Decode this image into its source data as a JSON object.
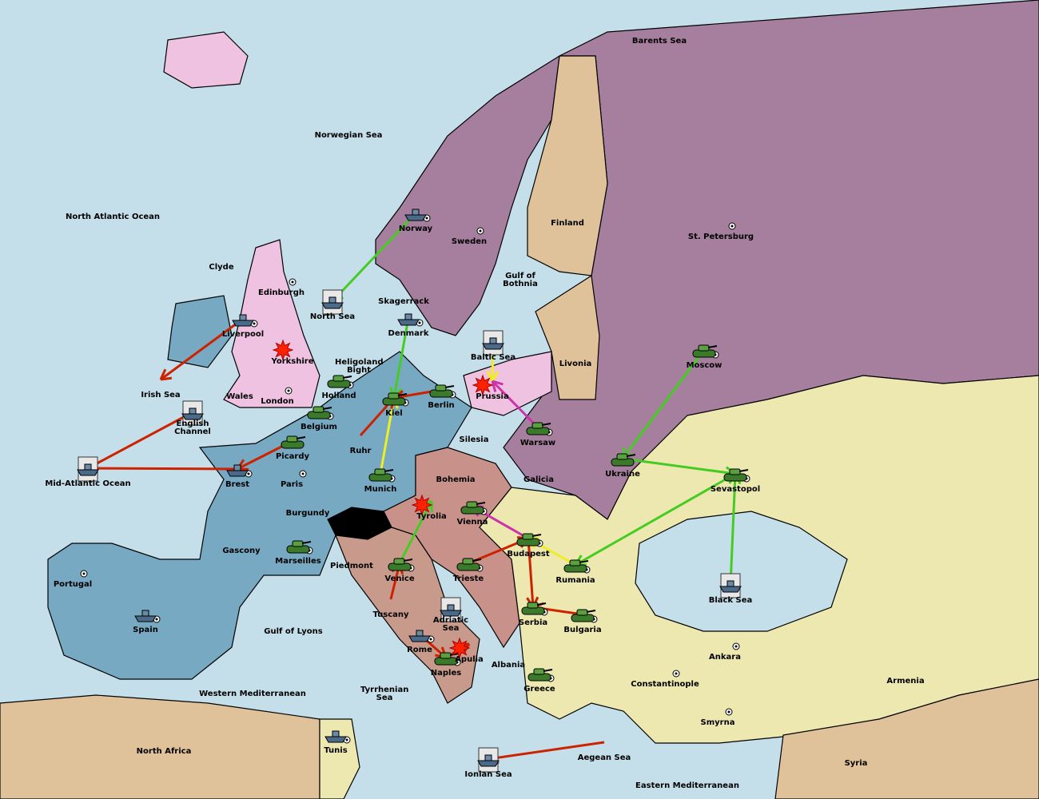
{
  "map_title": "",
  "colors": {
    "sea": "#c5dfea",
    "russia": "#a77f9e",
    "england": "#efc2e2",
    "france_germany": "#78a9c3",
    "austria": "#c8928a",
    "turkey": "#ede8b0",
    "neutral": "#e0c29a",
    "italy": "#c89a8c",
    "order_move": "#cc2200",
    "order_support": "#44cc22",
    "order_convoy": "#eeee22",
    "order_other": "#cc33aa"
  },
  "territories": [
    "Barents Sea",
    "Norwegian Sea",
    "North Atlantic Ocean",
    "Finland",
    "St. Petersburg",
    "Sweden",
    "Norway",
    "Clyde",
    "Gulf of Bothnia",
    "Edinburgh",
    "Skagerrack",
    "North Sea",
    "Liverpool",
    "Denmark",
    "Yorkshire",
    "Heligoland Bight",
    "Baltic Sea",
    "Livonia",
    "Moscow",
    "Irish Sea",
    "Wales",
    "Holland",
    "Prussia",
    "London",
    "Kiel",
    "Berlin",
    "English Channel",
    "Belgium",
    "Warsaw",
    "Silesia",
    "Ruhr",
    "Picardy",
    "Ukraine",
    "Mid-Atlantic Ocean",
    "Brest",
    "Paris",
    "Bohemia",
    "Galicia",
    "Sevastopol",
    "Munich",
    "Burgundy",
    "Tyrolia",
    "Vienna",
    "Budapest",
    "Gascony",
    "Marseilles",
    "Piedmont",
    "Venice",
    "Trieste",
    "Rumania",
    "Portugal",
    "Black Sea",
    "Tuscany",
    "Adriatic Sea",
    "Serbia",
    "Bulgaria",
    "Spain",
    "Gulf of Lyons",
    "Rome",
    "Apulia",
    "Ankara",
    "Albania",
    "Naples",
    "Armenia",
    "Constantinople",
    "Greece",
    "Tyrrhenian Sea",
    "Western Mediterranean",
    "Smyrna",
    "North Africa",
    "Tunis",
    "Aegean Sea",
    "Syria",
    "Ionian Sea",
    "Eastern Mediterranean"
  ],
  "units": [
    {
      "type": "fleet",
      "at": "Norway"
    },
    {
      "type": "fleet",
      "at": "North Sea",
      "retreat": true
    },
    {
      "type": "fleet",
      "at": "Liverpool"
    },
    {
      "type": "fleet",
      "at": "Denmark"
    },
    {
      "type": "fleet",
      "at": "Baltic Sea",
      "retreat": true
    },
    {
      "type": "fleet",
      "at": "English Channel",
      "retreat": true
    },
    {
      "type": "fleet",
      "at": "Mid-Atlantic Ocean",
      "retreat": true
    },
    {
      "type": "fleet",
      "at": "Brest"
    },
    {
      "type": "fleet",
      "at": "Spain"
    },
    {
      "type": "fleet",
      "at": "Rome"
    },
    {
      "type": "fleet",
      "at": "Adriatic Sea",
      "retreat": true
    },
    {
      "type": "fleet",
      "at": "Black Sea",
      "retreat": true
    },
    {
      "type": "fleet",
      "at": "Ionian Sea",
      "retreat": true
    },
    {
      "type": "fleet",
      "at": "Tunis"
    },
    {
      "type": "army",
      "at": "Holland"
    },
    {
      "type": "army",
      "at": "Belgium"
    },
    {
      "type": "army",
      "at": "Kiel"
    },
    {
      "type": "army",
      "at": "Berlin"
    },
    {
      "type": "army",
      "at": "Warsaw"
    },
    {
      "type": "army",
      "at": "Picardy"
    },
    {
      "type": "army",
      "at": "Munich"
    },
    {
      "type": "army",
      "at": "Vienna"
    },
    {
      "type": "army",
      "at": "Budapest"
    },
    {
      "type": "army",
      "at": "Marseilles"
    },
    {
      "type": "army",
      "at": "Venice"
    },
    {
      "type": "army",
      "at": "Trieste"
    },
    {
      "type": "army",
      "at": "Serbia"
    },
    {
      "type": "army",
      "at": "Bulgaria"
    },
    {
      "type": "army",
      "at": "Rumania"
    },
    {
      "type": "army",
      "at": "Greece"
    },
    {
      "type": "army",
      "at": "Naples"
    },
    {
      "type": "army",
      "at": "Moscow"
    },
    {
      "type": "army",
      "at": "Ukraine"
    },
    {
      "type": "army",
      "at": "Sevastopol"
    }
  ],
  "battles": [
    "Yorkshire",
    "Prussia",
    "Tyrolia",
    "Apulia"
  ]
}
